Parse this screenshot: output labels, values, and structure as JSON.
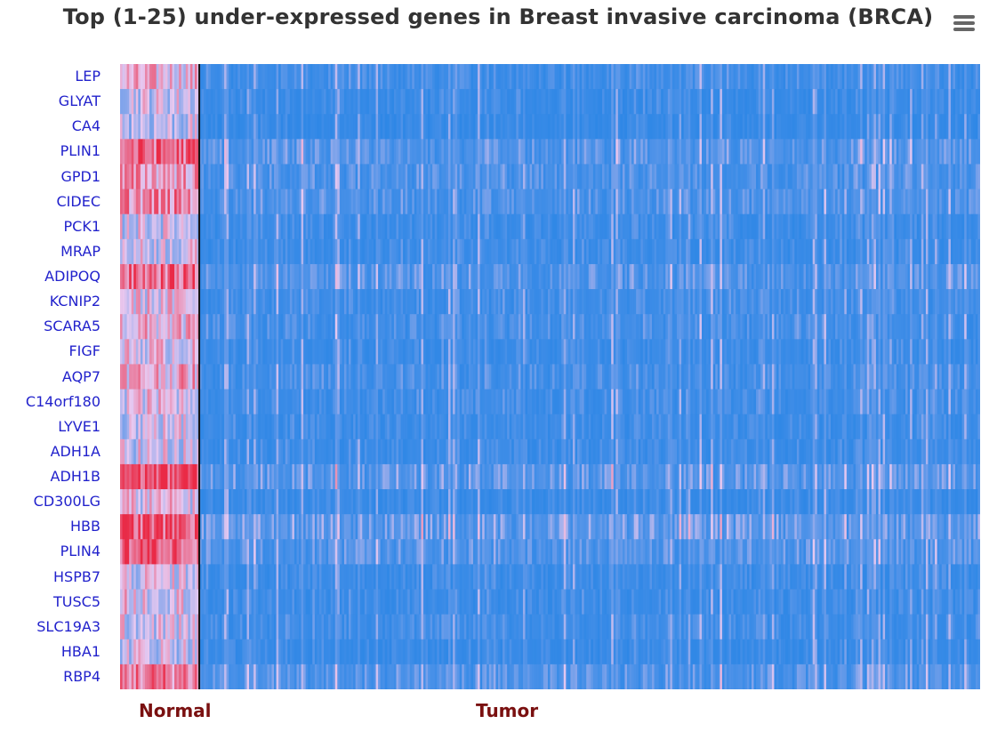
{
  "title": "Top (1-25) under-expressed genes in Breast invasive carcinoma (BRCA)",
  "menu_icon": "hamburger-menu-icon",
  "chart_data": {
    "type": "heatmap",
    "title": "Top (1-25) under-expressed genes in Breast invasive carcinoma (BRCA)",
    "genes": [
      "LEP",
      "GLYAT",
      "CA4",
      "PLIN1",
      "GPD1",
      "CIDEC",
      "PCK1",
      "MRAP",
      "ADIPOQ",
      "KCNIP2",
      "SCARA5",
      "FIGF",
      "AQP7",
      "C14orf180",
      "LYVE1",
      "ADH1A",
      "ADH1B",
      "CD300LG",
      "HBB",
      "PLIN4",
      "HSPB7",
      "TUSC5",
      "SLC19A3",
      "HBA1",
      "RBP4"
    ],
    "groups": [
      {
        "name": "Normal",
        "sample_fraction": 0.093
      },
      {
        "name": "Tumor",
        "sample_fraction": 0.907
      }
    ],
    "normal_mean_intensity": [
      0.55,
      0.45,
      0.4,
      0.8,
      0.65,
      0.7,
      0.45,
      0.45,
      0.8,
      0.5,
      0.55,
      0.5,
      0.6,
      0.5,
      0.45,
      0.45,
      0.9,
      0.5,
      0.85,
      0.85,
      0.45,
      0.5,
      0.45,
      0.45,
      0.75
    ],
    "tumor_mean_intensity": [
      0.12,
      0.08,
      0.06,
      0.22,
      0.18,
      0.18,
      0.1,
      0.1,
      0.22,
      0.12,
      0.14,
      0.1,
      0.14,
      0.12,
      0.1,
      0.1,
      0.25,
      0.08,
      0.3,
      0.22,
      0.1,
      0.1,
      0.12,
      0.08,
      0.2
    ],
    "color_scale": {
      "low": "#2b86e6",
      "mid": "#e8c8f0",
      "high": "#ea2a46"
    },
    "divider_color": "#111111",
    "legend": "none"
  }
}
